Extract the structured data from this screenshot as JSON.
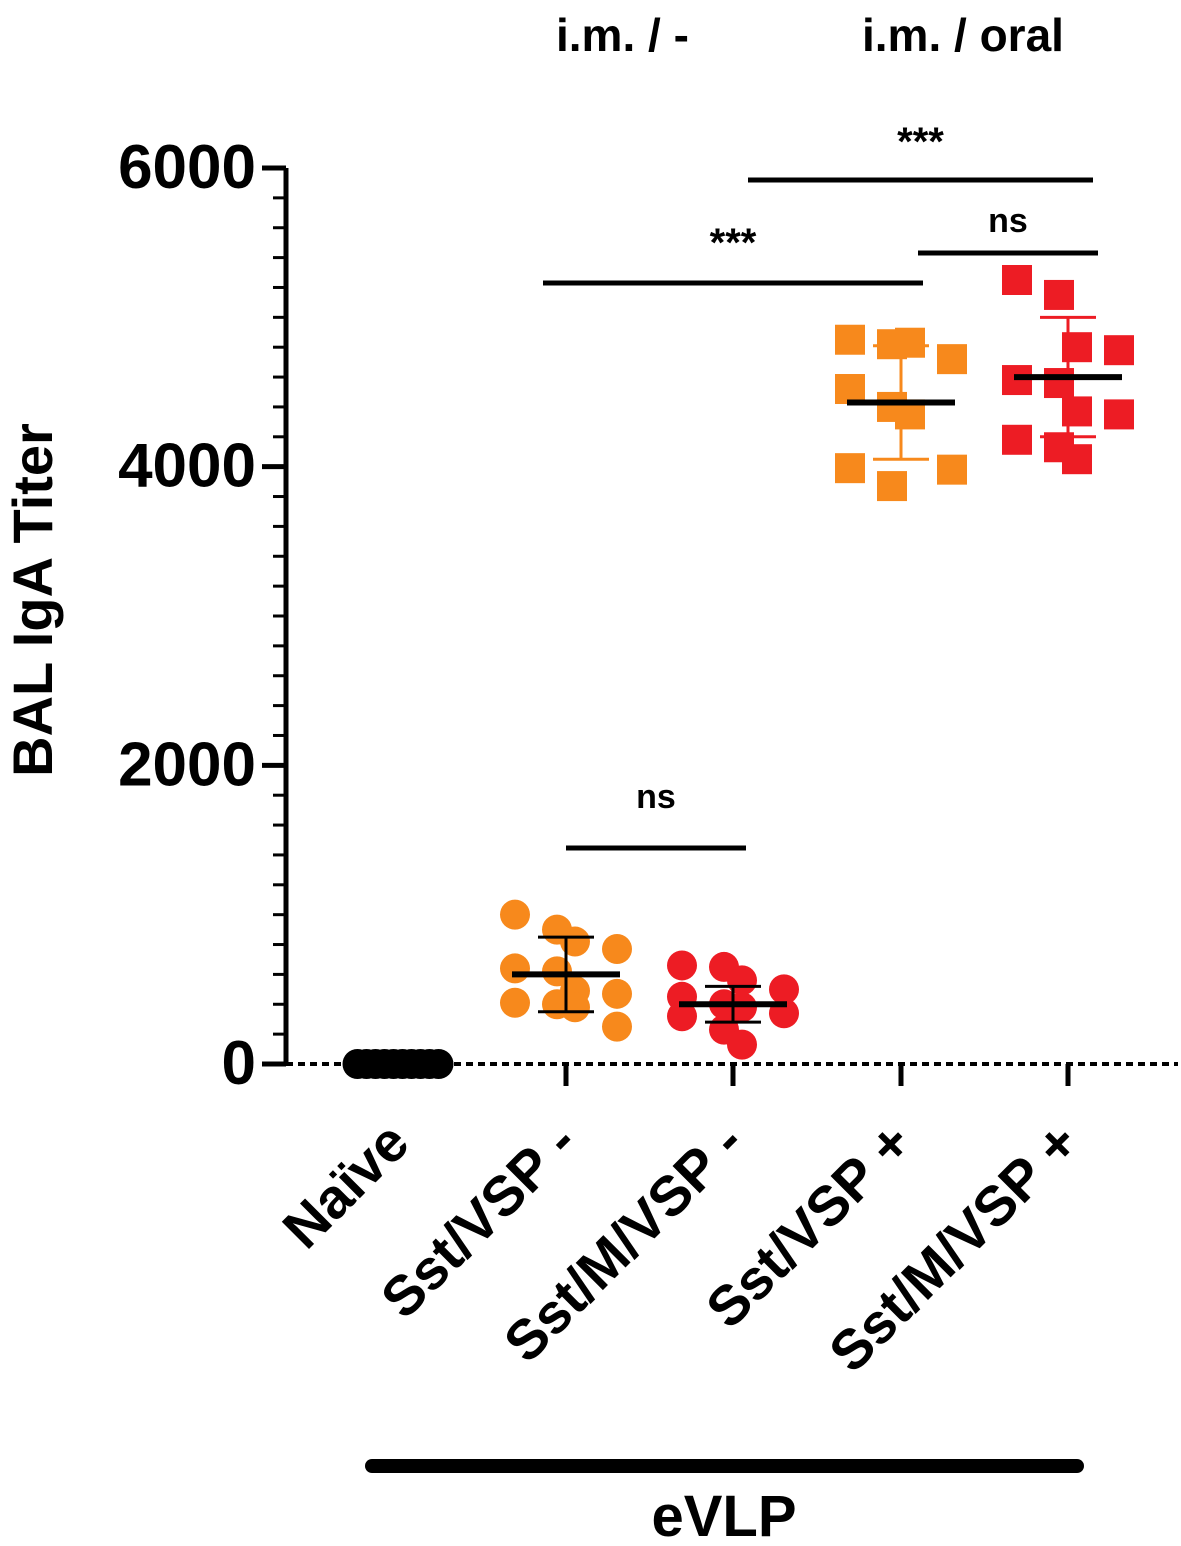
{
  "headers": {
    "group_im_none": "i.m. / -",
    "group_im_oral": "i.m. / oral"
  },
  "bracket_label": "eVLP",
  "colors": {
    "naive": "#000000",
    "orange": "#F7891C",
    "red": "#ED1C24",
    "axis": "#000000"
  },
  "chart_data": {
    "type": "scatter",
    "ylabel": "BAL IgA Titer",
    "xlabel": "",
    "ylim": [
      0,
      6000
    ],
    "yticks": [
      "0",
      "2000",
      "4000",
      "6000"
    ],
    "categories": [
      "Naïve",
      "Sst/VSP  -",
      "Sst/M/VSP -",
      "Sst/VSP +",
      "Sst/M/VSP +"
    ],
    "series": [
      {
        "category": "Naïve",
        "marker": "circle",
        "color": "#000000",
        "values": [
          0,
          0,
          0,
          0,
          0,
          0,
          0,
          0,
          0,
          0
        ],
        "mean": 0,
        "sd": 0
      },
      {
        "category": "Sst/VSP  -",
        "marker": "circle",
        "color": "#F7891C",
        "values": [
          1000,
          900,
          820,
          770,
          640,
          620,
          490,
          470,
          410,
          400,
          380,
          250
        ],
        "mean": 600,
        "sd": 250
      },
      {
        "category": "Sst/M/VSP -",
        "marker": "circle",
        "color": "#ED1C24",
        "values": [
          660,
          650,
          560,
          500,
          450,
          400,
          380,
          340,
          320,
          230,
          130
        ],
        "mean": 400,
        "sd": 120
      },
      {
        "category": "Sst/VSP +",
        "marker": "square",
        "color": "#F7891C",
        "values": [
          4850,
          4820,
          4830,
          4720,
          4520,
          4400,
          4350,
          3980,
          3990,
          3870
        ],
        "mean": 4430,
        "sd": 380
      },
      {
        "category": "Sst/M/VSP +",
        "marker": "square",
        "color": "#ED1C24",
        "values": [
          5250,
          5150,
          4800,
          4780,
          4580,
          4560,
          4370,
          4350,
          4180,
          4130,
          4050
        ],
        "mean": 4600,
        "sd": 400
      }
    ],
    "significance": [
      {
        "from": "Sst/VSP  -",
        "to": "Sst/M/VSP -",
        "label": "ns"
      },
      {
        "from": "Sst/VSP  -",
        "to": "Sst/VSP +",
        "label": "***"
      },
      {
        "from": "Sst/M/VSP -",
        "to": "Sst/M/VSP +",
        "label": "***"
      },
      {
        "from": "Sst/VSP +",
        "to": "Sst/M/VSP +",
        "label": "ns"
      }
    ]
  }
}
